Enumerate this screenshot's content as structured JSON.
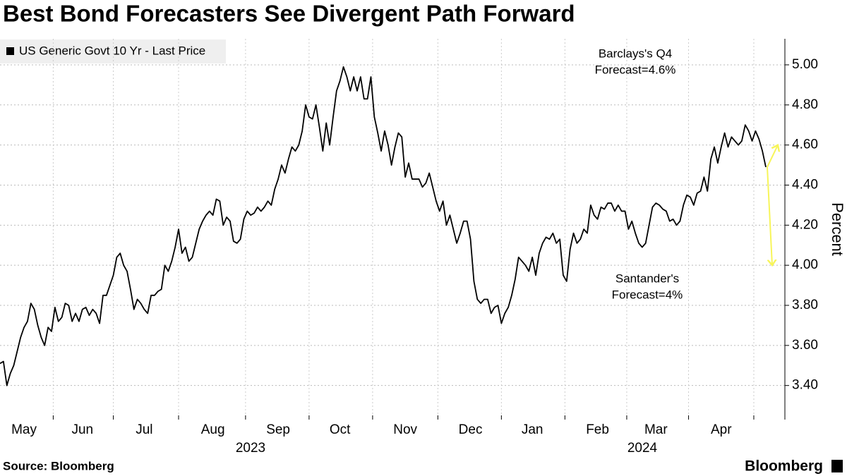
{
  "chart_data": {
    "type": "line",
    "title": "Best Bond Forecasters See Divergent Path Forward",
    "y_axis_label": "Percent",
    "source": "Source: Bloomberg",
    "brand": "Bloomberg",
    "year_labels": [
      "2023",
      "2024"
    ],
    "ylim": [
      3.23,
      5.13
    ],
    "yticks": [
      {
        "value": 3.4,
        "label": "3.40"
      },
      {
        "value": 3.6,
        "label": "3.60"
      },
      {
        "value": 3.8,
        "label": "3.80"
      },
      {
        "value": 4.0,
        "label": "4.00"
      },
      {
        "value": 4.2,
        "label": "4.20"
      },
      {
        "value": 4.4,
        "label": "4.40"
      },
      {
        "value": 4.6,
        "label": "4.60"
      },
      {
        "value": 4.8,
        "label": "4.80"
      },
      {
        "value": 5.0,
        "label": "5.00"
      }
    ],
    "grid": true,
    "legend": "top-left",
    "annotations": [
      {
        "text": [
          "Barclays's Q4",
          "Forecast=4.6%"
        ],
        "value": 4.6
      },
      {
        "text": [
          "Santander's",
          "Forecast=4%"
        ],
        "value": 4
      }
    ],
    "annotation_color": "#f7f55a",
    "categories": [
      null,
      null,
      null,
      null,
      null,
      null,
      null,
      "May",
      null,
      null,
      null,
      null,
      null,
      null,
      null,
      null,
      null,
      null,
      null,
      null,
      null,
      null,
      null,
      null,
      "Jun",
      null,
      null,
      null,
      null,
      null,
      null,
      null,
      null,
      null,
      null,
      null,
      null,
      null,
      null,
      null,
      null,
      null,
      "Jul",
      null,
      null,
      null,
      null,
      null,
      null,
      null,
      null,
      null,
      null,
      null,
      null,
      null,
      null,
      null,
      null,
      null,
      null,
      null,
      "Aug",
      null,
      null,
      null,
      null,
      null,
      null,
      null,
      null,
      null,
      null,
      null,
      null,
      null,
      null,
      null,
      null,
      null,
      null,
      "Sep",
      null,
      null,
      null,
      null,
      null,
      null,
      null,
      null,
      null,
      null,
      null,
      null,
      null,
      null,
      null,
      null,
      null,
      "Oct",
      null,
      null,
      null,
      null,
      null,
      null,
      null,
      null,
      null,
      null,
      null,
      null,
      null,
      null,
      null,
      null,
      null,
      null,
      "Nov",
      null,
      null,
      null,
      null,
      null,
      null,
      null,
      null,
      null,
      null,
      null,
      null,
      null,
      null,
      null,
      null,
      null,
      null,
      "Dec",
      null,
      null,
      null,
      null,
      null,
      null,
      null,
      null,
      null,
      null,
      null,
      null,
      null,
      null,
      null,
      null,
      null,
      "Jan",
      null,
      null,
      null,
      null,
      null,
      null,
      null,
      null,
      null,
      null,
      null,
      null,
      null,
      null,
      null,
      null,
      null,
      null,
      "Feb",
      null,
      null,
      null,
      null,
      null,
      null,
      null,
      null,
      null,
      null,
      null,
      null,
      null,
      null,
      null,
      null,
      "Mar",
      null,
      null,
      null,
      null,
      null,
      null,
      null,
      null,
      null,
      null,
      null,
      null,
      null,
      null,
      null,
      null,
      null,
      null,
      "Apr",
      null,
      null,
      null,
      null,
      null,
      null,
      null,
      null,
      null,
      null,
      null,
      null,
      null
    ],
    "series": [
      {
        "name": "US Generic Govt 10 Yr - Last Price",
        "color": "#000000",
        "values": [
          3.51,
          3.52,
          3.4,
          3.46,
          3.5,
          3.57,
          3.64,
          3.69,
          3.72,
          3.81,
          3.78,
          3.7,
          3.64,
          3.6,
          3.69,
          3.67,
          3.79,
          3.72,
          3.74,
          3.81,
          3.8,
          3.72,
          3.76,
          3.72,
          3.78,
          3.79,
          3.75,
          3.78,
          3.76,
          3.71,
          3.85,
          3.85,
          3.9,
          3.95,
          4.04,
          4.06,
          4.0,
          3.97,
          3.88,
          3.78,
          3.83,
          3.81,
          3.78,
          3.76,
          3.85,
          3.85,
          3.87,
          3.88,
          4.0,
          3.97,
          4.02,
          4.09,
          4.18,
          4.06,
          4.09,
          4.02,
          4.04,
          4.11,
          4.18,
          4.22,
          4.25,
          4.27,
          4.25,
          4.33,
          4.32,
          4.2,
          4.24,
          4.22,
          4.12,
          4.11,
          4.13,
          4.23,
          4.27,
          4.25,
          4.26,
          4.29,
          4.27,
          4.29,
          4.32,
          4.3,
          4.38,
          4.43,
          4.5,
          4.46,
          4.53,
          4.59,
          4.57,
          4.6,
          4.67,
          4.8,
          4.74,
          4.73,
          4.8,
          4.69,
          4.57,
          4.71,
          4.6,
          4.74,
          4.87,
          4.92,
          4.99,
          4.94,
          4.87,
          4.94,
          4.87,
          4.94,
          4.83,
          4.83,
          4.94,
          4.74,
          4.66,
          4.57,
          4.67,
          4.6,
          4.5,
          4.59,
          4.66,
          4.64,
          4.44,
          4.51,
          4.43,
          4.43,
          4.43,
          4.39,
          4.41,
          4.46,
          4.39,
          4.32,
          4.27,
          4.32,
          4.2,
          4.25,
          4.18,
          4.11,
          4.16,
          4.22,
          4.22,
          4.13,
          3.92,
          3.83,
          3.81,
          3.83,
          3.83,
          3.76,
          3.79,
          3.8,
          3.71,
          3.76,
          3.79,
          3.85,
          3.93,
          4.04,
          4.02,
          4.0,
          3.97,
          4.04,
          3.95,
          4.06,
          4.11,
          4.14,
          4.13,
          4.16,
          4.11,
          4.13,
          3.95,
          3.92,
          4.08,
          4.16,
          4.11,
          4.13,
          4.18,
          4.16,
          4.3,
          4.25,
          4.23,
          4.29,
          4.28,
          4.31,
          4.31,
          4.27,
          4.3,
          4.27,
          4.27,
          4.18,
          4.22,
          4.16,
          4.11,
          4.09,
          4.11,
          4.2,
          4.29,
          4.31,
          4.3,
          4.28,
          4.27,
          4.22,
          4.23,
          4.2,
          4.22,
          4.3,
          4.35,
          4.34,
          4.3,
          4.36,
          4.37,
          4.44,
          4.37,
          4.53,
          4.59,
          4.51,
          4.59,
          4.66,
          4.59,
          4.64,
          4.62,
          4.6,
          4.62,
          4.7,
          4.67,
          4.62,
          4.67,
          4.63,
          4.57,
          4.49
        ]
      }
    ]
  }
}
